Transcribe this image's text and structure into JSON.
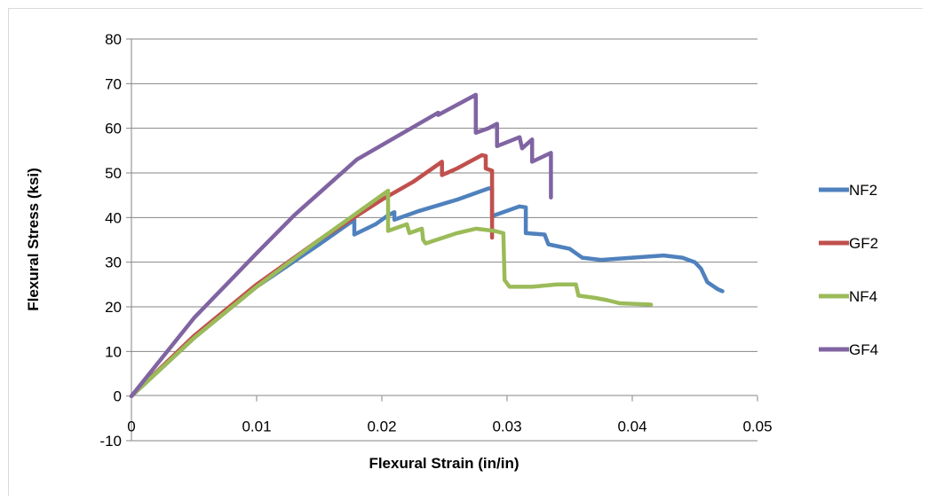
{
  "chart_data": {
    "type": "line",
    "title": "",
    "xlabel": "Flexural Strain (in/in)",
    "ylabel": "Flexural Stress (ksi)",
    "xlim": [
      0,
      0.05
    ],
    "ylim": [
      -10,
      80
    ],
    "x_ticks": [
      "0",
      "0.01",
      "0.02",
      "0.03",
      "0.04",
      "0.05"
    ],
    "y_ticks": [
      "-10",
      "0",
      "10",
      "20",
      "30",
      "40",
      "50",
      "60",
      "70",
      "80"
    ],
    "grid": "horizontal",
    "legend_position": "right",
    "series": [
      {
        "name": "NF2",
        "color": "#4f81bd",
        "points": [
          [
            0,
            0
          ],
          [
            0.005,
            13
          ],
          [
            0.01,
            24.5
          ],
          [
            0.015,
            34
          ],
          [
            0.0178,
            39.5
          ],
          [
            0.0178,
            36.2
          ],
          [
            0.0195,
            38.5
          ],
          [
            0.0205,
            40.5
          ],
          [
            0.021,
            41.2
          ],
          [
            0.021,
            39.5
          ],
          [
            0.023,
            41.5
          ],
          [
            0.026,
            44
          ],
          [
            0.0285,
            46.5
          ],
          [
            0.0288,
            46.6
          ],
          [
            0.0288,
            40.2
          ],
          [
            0.029,
            40.5
          ],
          [
            0.031,
            42.5
          ],
          [
            0.0315,
            42.3
          ],
          [
            0.0315,
            36.5
          ],
          [
            0.033,
            36.2
          ],
          [
            0.0333,
            34
          ],
          [
            0.035,
            33
          ],
          [
            0.036,
            31
          ],
          [
            0.0375,
            30.5
          ],
          [
            0.04,
            31
          ],
          [
            0.0425,
            31.5
          ],
          [
            0.044,
            31
          ],
          [
            0.045,
            30
          ],
          [
            0.0455,
            28.5
          ],
          [
            0.046,
            25.5
          ],
          [
            0.0468,
            24
          ],
          [
            0.0472,
            23.5
          ]
        ]
      },
      {
        "name": "GF2",
        "color": "#c0504d",
        "points": [
          [
            0,
            0
          ],
          [
            0.005,
            13.5
          ],
          [
            0.01,
            25
          ],
          [
            0.015,
            35
          ],
          [
            0.02,
            44
          ],
          [
            0.0225,
            48
          ],
          [
            0.0248,
            52.5
          ],
          [
            0.0248,
            49.5
          ],
          [
            0.026,
            51
          ],
          [
            0.028,
            54
          ],
          [
            0.0283,
            53.8
          ],
          [
            0.0283,
            51
          ],
          [
            0.0288,
            50.5
          ],
          [
            0.0288,
            35.5
          ]
        ]
      },
      {
        "name": "NF4",
        "color": "#9bbb59",
        "points": [
          [
            0,
            0
          ],
          [
            0.005,
            13
          ],
          [
            0.01,
            24.5
          ],
          [
            0.015,
            35
          ],
          [
            0.0205,
            46
          ],
          [
            0.0205,
            37
          ],
          [
            0.022,
            38.5
          ],
          [
            0.0222,
            36.5
          ],
          [
            0.0232,
            37.5
          ],
          [
            0.0233,
            35
          ],
          [
            0.0235,
            34.2
          ],
          [
            0.026,
            36.5
          ],
          [
            0.0275,
            37.5
          ],
          [
            0.029,
            37
          ],
          [
            0.0297,
            36.5
          ],
          [
            0.0298,
            26
          ],
          [
            0.0302,
            24.5
          ],
          [
            0.032,
            24.5
          ],
          [
            0.034,
            25
          ],
          [
            0.0355,
            25
          ],
          [
            0.0357,
            22.5
          ],
          [
            0.037,
            22
          ],
          [
            0.038,
            21.5
          ],
          [
            0.039,
            20.8
          ],
          [
            0.0415,
            20.5
          ]
        ]
      },
      {
        "name": "GF4",
        "color": "#8064a2",
        "points": [
          [
            0,
            0
          ],
          [
            0.005,
            17.5
          ],
          [
            0.01,
            32
          ],
          [
            0.013,
            40.5
          ],
          [
            0.018,
            53
          ],
          [
            0.0245,
            63.5
          ],
          [
            0.0245,
            63
          ],
          [
            0.0275,
            67.5
          ],
          [
            0.0275,
            59
          ],
          [
            0.0285,
            60
          ],
          [
            0.0292,
            61
          ],
          [
            0.0292,
            56
          ],
          [
            0.031,
            58
          ],
          [
            0.0312,
            55.5
          ],
          [
            0.032,
            57.5
          ],
          [
            0.032,
            52.5
          ],
          [
            0.0335,
            54.5
          ],
          [
            0.0335,
            44.5
          ]
        ]
      }
    ]
  }
}
